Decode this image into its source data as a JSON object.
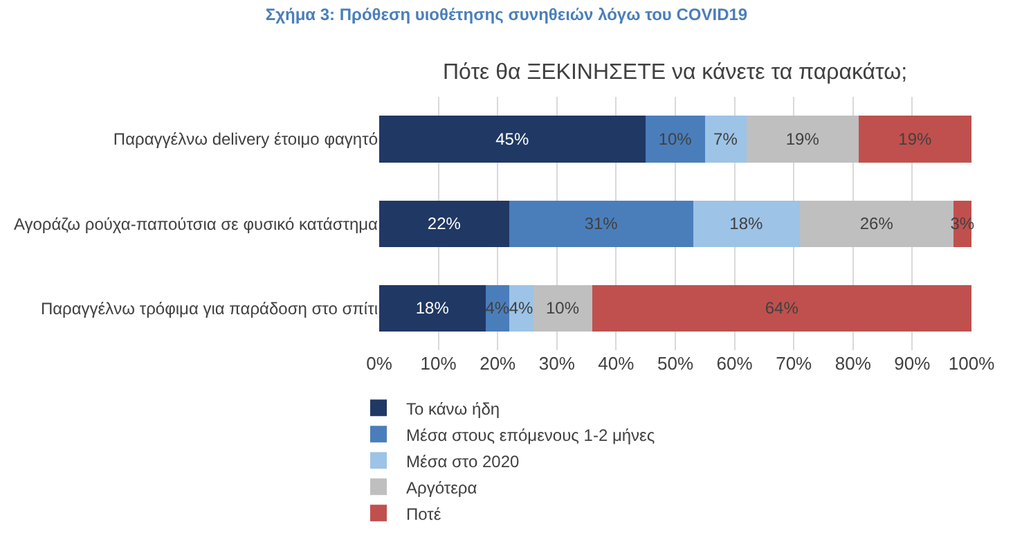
{
  "chart_data": {
    "type": "bar",
    "orientation": "horizontal",
    "stacked": true,
    "title": "Σχήμα 3: Πρόθεση υιοθέτησης συνηθειών λόγω του COVID19",
    "subtitle": "Πότε θα ΞΕΚΙΝΗΣΕΤΕ να κάνετε τα παρακάτω;",
    "categories": [
      "Παραγγέλνω delivery έτοιμο φαγητό",
      "Αγοράζω ρούχα-παπούτσια σε φυσικό κατάστημα",
      "Παραγγέλνω τρόφιμα για παράδοση στο σπίτι"
    ],
    "series": [
      {
        "name": "Το κάνω ήδη",
        "color": "#203864",
        "values": [
          45,
          22,
          18
        ],
        "value_labels": [
          "45%",
          "22%",
          "18%"
        ]
      },
      {
        "name": "Μέσα στους επόμενους 1-2 μήνες",
        "color": "#4a7ebb",
        "values": [
          10,
          31,
          4
        ],
        "value_labels": [
          "10%",
          "31%",
          "4%"
        ]
      },
      {
        "name": "Μέσα στο 2020",
        "color": "#9dc3e6",
        "values": [
          7,
          18,
          4
        ],
        "value_labels": [
          "7%",
          "18%",
          "4%"
        ]
      },
      {
        "name": "Αργότερα",
        "color": "#bfbfbf",
        "values": [
          19,
          26,
          10
        ],
        "value_labels": [
          "19%",
          "26%",
          "10%"
        ]
      },
      {
        "name": "Ποτέ",
        "color": "#c0504d",
        "values": [
          19,
          3,
          64
        ],
        "value_labels": [
          "19%",
          "3%",
          "64%"
        ]
      }
    ],
    "xlim": [
      0,
      100
    ],
    "xticks": [
      {
        "value": 0,
        "label": "0%"
      },
      {
        "value": 10,
        "label": "10%"
      },
      {
        "value": 20,
        "label": "20%"
      },
      {
        "value": 30,
        "label": "30%"
      },
      {
        "value": 40,
        "label": "40%"
      },
      {
        "value": 50,
        "label": "50%"
      },
      {
        "value": 60,
        "label": "60%"
      },
      {
        "value": 70,
        "label": "70%"
      },
      {
        "value": 80,
        "label": "80%"
      },
      {
        "value": 90,
        "label": "90%"
      },
      {
        "value": 100,
        "label": "100%"
      }
    ],
    "grid": "x",
    "legend": "bottom"
  }
}
